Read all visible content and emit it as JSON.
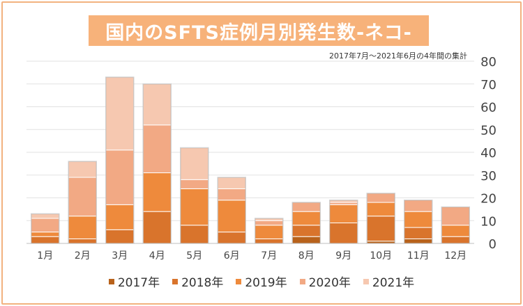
{
  "title": "国内のSFTS症例月別発生数-ネコ-",
  "subtitle": "2017年7月～2021年6月の4年間の集計",
  "chart_data": {
    "type": "bar",
    "stacked": true,
    "categories": [
      "1月",
      "2月",
      "3月",
      "4月",
      "5月",
      "6月",
      "7月",
      "8月",
      "9月",
      "10月",
      "11月",
      "12月"
    ],
    "ylim": [
      0,
      80
    ],
    "yticks": [
      0,
      10,
      20,
      30,
      40,
      50,
      60,
      70,
      80
    ],
    "y_axis_position": "right",
    "grid": true,
    "legend_position": "bottom",
    "series": [
      {
        "name": "2017年",
        "color": "#b8621b",
        "values": [
          0,
          0,
          0,
          0,
          0,
          0,
          0,
          3,
          0,
          1,
          2,
          0
        ]
      },
      {
        "name": "2018年",
        "color": "#d9742c",
        "values": [
          3,
          2,
          6,
          14,
          8,
          5,
          2,
          5,
          9,
          11,
          5,
          3
        ]
      },
      {
        "name": "2019年",
        "color": "#ee8a3c",
        "values": [
          2,
          10,
          11,
          17,
          16,
          14,
          6,
          6,
          8,
          6,
          7,
          5
        ]
      },
      {
        "name": "2020年",
        "color": "#f2a984",
        "values": [
          6,
          17,
          24,
          21,
          4,
          5,
          2,
          4,
          1,
          4,
          5,
          8
        ]
      },
      {
        "name": "2021年",
        "color": "#f6c8b0",
        "values": [
          2,
          7,
          32,
          18,
          14,
          5,
          1,
          0,
          1,
          0,
          0,
          0
        ]
      }
    ]
  }
}
